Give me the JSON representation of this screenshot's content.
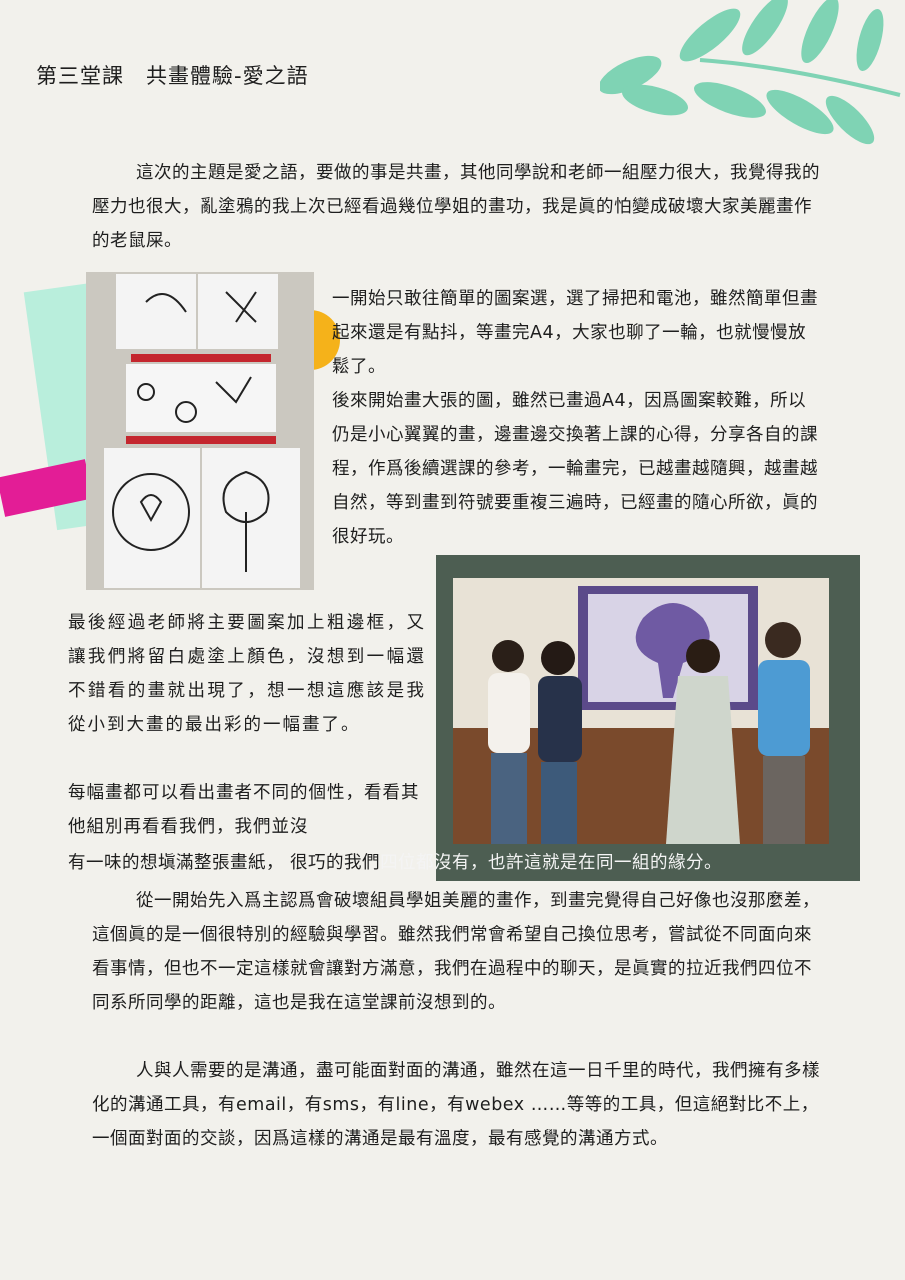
{
  "title": "第三堂課　共畫體驗-愛之語",
  "paragraphs": {
    "intro": "這次的主題是愛之語，要做的事是共畫，其他同學說和老師一組壓力很大，我覺得我的壓力也很大，亂塗鴉的我上次已經看過幾位學姐的畫功，我是眞的怕變成破壞大家美麗畫作的老鼠屎。",
    "start": "一開始只敢往簡單的圖案選，選了掃把和電池，雖然簡單但畫起來還是有點抖，等畫完A4，大家也聊了一輪，也就慢慢放鬆了。",
    "later": "後來開始畫大張的圖，雖然已畫過A4，因爲圖案較難，所以仍是小心翼翼的畫，邊畫邊交換著上課的心得，分享各自的課程，作爲後續選課的參考，一輪畫完，已越畫越隨興，越畫越自然，等到畫到符號要重複三遍時，已經畫的隨心所欲，眞的很好玩。",
    "finally": "最後經過老師將主要圖案加上粗邊框，又讓我們將留白處塗上顏色，沒想到一幅還不錯看的畫就出現了，想一想這應該是我從小到大畫的最出彩的一幅畫了。",
    "personality": "每幅畫都可以看出畫者不同的個性，看看其他組別再看看我們，我們並沒",
    "personality_end_left": "有一味的想塡滿整張畫紙，  很巧的我們",
    "personality_end_right": "四位都沒有，也許這就是在同一組的緣分。",
    "reflection": "從一開始先入爲主認爲會破壞組員學姐美麗的畫作，到畫完覺得自己好像也沒那麼差，這個眞的是一個很特別的經驗與學習。雖然我們常會希望自己換位思考，嘗試從不同面向來看事情，但也不一定這樣就會讓對方滿意，我們在過程中的聊天，是眞實的拉近我們四位不同系所同學的距離，這也是我在這堂課前沒想到的。",
    "communication": "人與人需要的是溝通，盡可能面對面的溝通，雖然在這一日千里的時代，我們擁有多樣化的溝通工具，有email，有sms，有line，有webex ……等等的工具，但這絕對比不上，一個面對面的交談，因爲這樣的溝通是最有溫度，最有感覺的溝通方式。"
  },
  "colors": {
    "leaf": "#7fd3b4",
    "mint": "#b9eedc",
    "pink": "#e31d96",
    "photo_frame": "#4d5e52"
  }
}
